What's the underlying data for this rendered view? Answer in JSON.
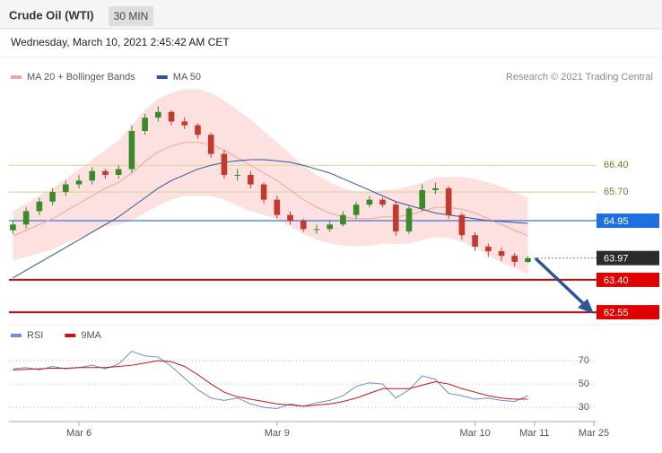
{
  "header": {
    "title": "Crude Oil (WTI)",
    "timeframe": "30 MIN"
  },
  "timestamp": "Wednesday, March 10, 2021 2:45:42 AM CET",
  "chart_data": [
    {
      "type": "candlestick",
      "copyright": "Research © 2021 Trading Central",
      "up_color": "#3a8a2a",
      "down_color": "#c23a2e",
      "open": [
        64.7,
        64.85,
        65.2,
        65.45,
        65.7,
        65.9,
        66.0,
        66.25,
        66.15,
        66.3,
        67.3,
        67.65,
        67.8,
        67.55,
        67.45,
        67.2,
        66.7,
        66.15,
        66.15,
        65.9,
        65.5,
        65.1,
        64.95,
        64.73,
        64.73,
        64.85,
        65.1,
        65.37,
        65.5,
        65.37,
        64.67,
        65.27,
        65.75,
        65.8,
        65.1,
        64.57,
        64.27,
        64.15,
        64.03,
        63.87
      ],
      "high": [
        64.95,
        65.3,
        65.55,
        65.8,
        66.0,
        66.15,
        66.35,
        66.3,
        66.4,
        67.45,
        67.75,
        67.95,
        67.85,
        67.65,
        67.5,
        67.25,
        66.8,
        66.3,
        66.25,
        65.95,
        65.6,
        65.2,
        65.0,
        64.85,
        64.95,
        65.2,
        65.45,
        65.6,
        65.55,
        65.45,
        65.35,
        65.9,
        65.95,
        65.85,
        65.15,
        64.65,
        64.35,
        64.25,
        64.1,
        64.02
      ],
      "low": [
        64.6,
        64.75,
        65.1,
        65.35,
        65.6,
        65.8,
        65.9,
        66.05,
        66.05,
        66.2,
        67.2,
        67.55,
        67.45,
        67.35,
        67.1,
        66.6,
        66.05,
        66.0,
        65.8,
        65.4,
        65.0,
        64.85,
        64.65,
        64.6,
        64.65,
        64.8,
        65.0,
        65.3,
        65.3,
        64.55,
        64.6,
        65.2,
        65.65,
        65.0,
        64.45,
        64.15,
        64.0,
        63.9,
        63.75,
        63.85
      ],
      "close": [
        64.85,
        65.2,
        65.45,
        65.7,
        65.9,
        66.0,
        66.25,
        66.15,
        66.3,
        67.3,
        67.65,
        67.8,
        67.55,
        67.45,
        67.2,
        66.7,
        66.15,
        66.15,
        65.9,
        65.5,
        65.1,
        64.95,
        64.73,
        64.73,
        64.85,
        65.1,
        65.37,
        65.5,
        65.37,
        64.67,
        65.27,
        65.75,
        65.8,
        65.1,
        64.57,
        64.27,
        64.15,
        64.03,
        63.87,
        63.97
      ],
      "series": [
        {
          "name": "MA 20 + Bollinger Bands",
          "color": "#f2a49c",
          "band_color": "#fde1e1",
          "values": [
            64.55,
            64.7,
            64.85,
            65.0,
            65.2,
            65.4,
            65.6,
            65.8,
            65.95,
            66.2,
            66.5,
            66.75,
            66.9,
            67.0,
            67.0,
            66.95,
            66.8,
            66.6,
            66.4,
            66.2,
            66.0,
            65.75,
            65.5,
            65.3,
            65.15,
            65.05,
            65.0,
            65.0,
            65.05,
            65.05,
            65.1,
            65.2,
            65.3,
            65.3,
            65.25,
            65.15,
            65.0,
            64.85,
            64.7,
            64.55
          ],
          "upper": [
            65.2,
            65.4,
            65.6,
            65.8,
            66.05,
            66.3,
            66.55,
            66.8,
            67.05,
            67.45,
            67.85,
            68.15,
            68.3,
            68.4,
            68.4,
            68.3,
            68.1,
            67.85,
            67.6,
            67.3,
            67.0,
            66.7,
            66.4,
            66.15,
            65.95,
            65.8,
            65.72,
            65.7,
            65.75,
            65.77,
            65.85,
            65.95,
            66.08,
            66.1,
            66.1,
            66.05,
            65.95,
            65.85,
            65.7,
            65.55
          ],
          "lower": [
            63.9,
            64.0,
            64.1,
            64.2,
            64.35,
            64.5,
            64.65,
            64.8,
            64.85,
            64.95,
            65.15,
            65.35,
            65.5,
            65.6,
            65.6,
            65.6,
            65.5,
            65.35,
            65.2,
            65.1,
            65.0,
            64.8,
            64.6,
            64.45,
            64.35,
            64.3,
            64.28,
            64.3,
            64.35,
            64.33,
            64.35,
            64.45,
            64.52,
            64.5,
            64.4,
            64.25,
            64.05,
            63.85,
            63.7,
            63.55
          ]
        },
        {
          "name": "MA 50",
          "color": "#2f5597",
          "values": [
            63.45,
            63.65,
            63.85,
            64.05,
            64.25,
            64.45,
            64.65,
            64.85,
            65.05,
            65.3,
            65.55,
            65.8,
            66.0,
            66.15,
            66.3,
            66.4,
            66.48,
            66.52,
            66.55,
            66.55,
            66.52,
            66.48,
            66.4,
            66.3,
            66.2,
            66.05,
            65.9,
            65.75,
            65.6,
            65.45,
            65.35,
            65.25,
            65.15,
            65.1,
            65.05,
            65.0,
            64.95,
            64.93,
            64.9,
            64.88
          ]
        }
      ],
      "levels": [
        {
          "value": 66.4,
          "label": "66.40",
          "color": "#d8d8a4",
          "text_color": "#5f8a1e"
        },
        {
          "value": 65.7,
          "label": "65.70",
          "color": "#d8d8a4",
          "text_color": "#5f8a1e"
        },
        {
          "value": 64.95,
          "label": "64.95",
          "color": "#3a78d8",
          "tag_color": "#1f6fe0"
        },
        {
          "value": 63.97,
          "label": "63.97",
          "color": "#888888",
          "tag_color": "#2b2b2b",
          "style": "dotted"
        },
        {
          "value": 63.4,
          "label": "63.40",
          "color": "#d40000",
          "tag_color": "#e00000"
        },
        {
          "value": 62.55,
          "label": "62.55",
          "color": "#d40000",
          "tag_color": "#e00000"
        }
      ],
      "ylim": [
        62.27,
        68.5
      ],
      "xlim": [
        -0.3,
        44.2
      ]
    },
    {
      "type": "line",
      "series": [
        {
          "name": "RSI",
          "color": "#6c8fd0",
          "values": [
            63,
            64,
            62,
            65,
            63,
            64,
            66,
            63,
            67,
            78,
            74,
            73,
            65,
            55,
            45,
            38,
            36,
            38,
            33,
            30,
            29,
            33,
            31,
            34,
            36,
            40,
            48,
            51,
            50,
            38,
            45,
            57,
            54,
            42,
            40,
            37,
            38,
            36,
            35,
            40
          ]
        },
        {
          "name": "9MA",
          "color": "#cc1111",
          "values": [
            62,
            62.5,
            63,
            63.5,
            63.5,
            64,
            64,
            64,
            65,
            66,
            68,
            70,
            69,
            65,
            58,
            50,
            43,
            39,
            37,
            35,
            33,
            32,
            31,
            32,
            33,
            35,
            38,
            42,
            46,
            46,
            46,
            49,
            52,
            50,
            46,
            43,
            40,
            38,
            37,
            37
          ]
        }
      ],
      "ylim": [
        24,
        83
      ],
      "yticks": [
        30,
        50,
        70
      ],
      "grid": true,
      "xlim": [
        -0.3,
        44.2
      ],
      "xticks": [
        {
          "value": 5,
          "label": "Mar 6"
        },
        {
          "value": 20,
          "label": "Mar 9"
        },
        {
          "value": 35,
          "label": "Mar 10"
        },
        {
          "value": 39.5,
          "label": "Mar 11"
        },
        {
          "value": 44,
          "label": "Mar 25"
        }
      ]
    }
  ]
}
